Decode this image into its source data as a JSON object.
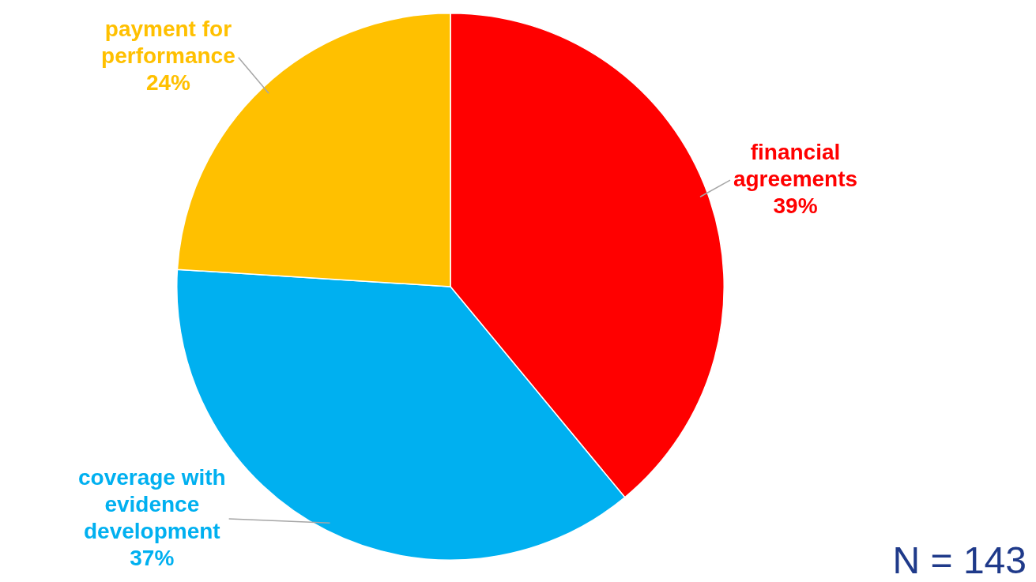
{
  "chart_data": {
    "type": "pie",
    "categories": [
      "financial agreements",
      "coverage with evidence development",
      "payment for performance"
    ],
    "values": [
      39,
      37,
      24
    ],
    "colors": [
      "#ff0000",
      "#00b0f0",
      "#ffc000"
    ],
    "value_labels": [
      "39%",
      "37%",
      "24%"
    ],
    "legend": false,
    "annotations": [
      "N = 143"
    ]
  }
}
